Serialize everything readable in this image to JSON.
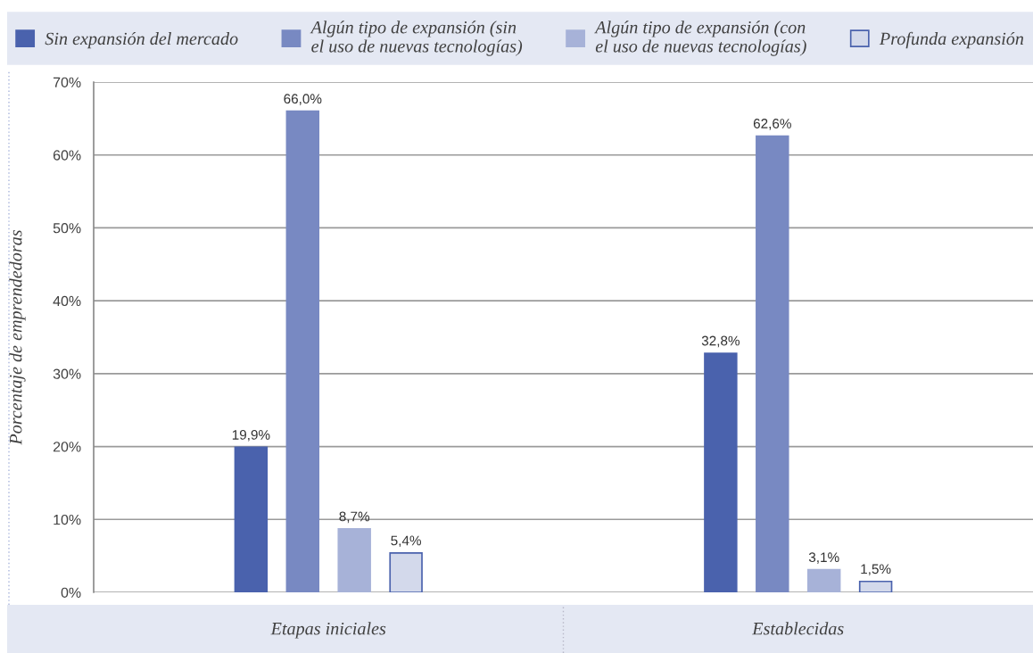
{
  "chart_data": {
    "type": "bar",
    "ylabel": "Porcentaje de emprendedoras",
    "categories": [
      "Etapas iniciales",
      "Establecidas"
    ],
    "series": [
      {
        "name": "Sin expansión del mercado",
        "color": "#4a62ad",
        "values": [
          19.9,
          32.8
        ],
        "value_labels": [
          "19,9%",
          "32,8%"
        ]
      },
      {
        "name": "Algún tipo de expansión (sin el uso de nuevas tecnologías)",
        "color": "#7889c2",
        "values": [
          66.0,
          62.6
        ],
        "value_labels": [
          "66,0%",
          "62,6%"
        ]
      },
      {
        "name": "Algún tipo de expansión (con el uso de nuevas tecnologías)",
        "color": "#a7b2d8",
        "values": [
          8.7,
          3.1
        ],
        "value_labels": [
          "8,7%",
          "3,1%"
        ]
      },
      {
        "name": "Profunda expansión",
        "color": "#d3d9eb",
        "values": [
          5.4,
          1.5
        ],
        "value_labels": [
          "5,4%",
          "1,5%"
        ]
      }
    ],
    "ylim": [
      0,
      70
    ],
    "yticks": [
      {
        "value": 0,
        "label": "0%"
      },
      {
        "value": 10,
        "label": "10%"
      },
      {
        "value": 20,
        "label": "20%"
      },
      {
        "value": 30,
        "label": "30%"
      },
      {
        "value": 40,
        "label": "40%"
      },
      {
        "value": 50,
        "label": "50%"
      },
      {
        "value": 60,
        "label": "60%"
      },
      {
        "value": 70,
        "label": "70%"
      }
    ],
    "grid": "y",
    "legend": "top"
  }
}
